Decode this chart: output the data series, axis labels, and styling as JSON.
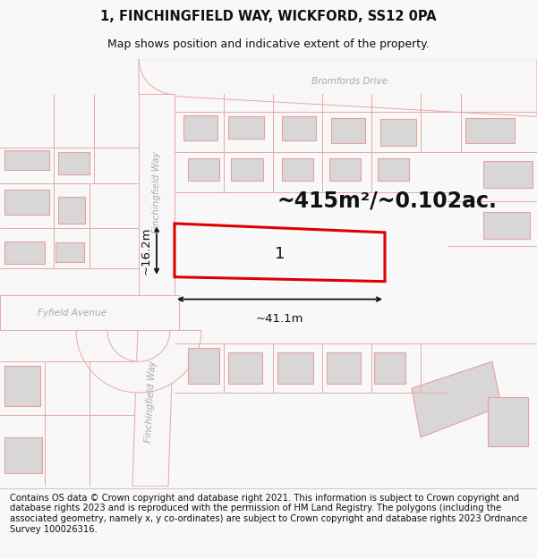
{
  "title_line1": "1, FINCHINGFIELD WAY, WICKFORD, SS12 0PA",
  "title_line2": "Map shows position and indicative extent of the property.",
  "footer_text": "Contains OS data © Crown copyright and database right 2021. This information is subject to Crown copyright and database rights 2023 and is reproduced with the permission of HM Land Registry. The polygons (including the associated geometry, namely x, y co-ordinates) are subject to Crown copyright and database rights 2023 Ordnance Survey 100026316.",
  "bg_color": "#f8f8f8",
  "map_bg": "#eeecec",
  "road_color": "#f8f6f6",
  "plot_border_color": "#dd0000",
  "building_fill": "#d8d6d6",
  "building_edge": "#e8a0a0",
  "road_line_color": "#e8a8a8",
  "street_label_color": "#aaaaaa",
  "area_text": "~415m²/~0.102ac.",
  "width_text": "~41.1m",
  "height_text": "~16.2m",
  "plot_label": "1",
  "title_fontsize": 10.5,
  "subtitle_fontsize": 9,
  "footer_fontsize": 7.2,
  "area_fontsize": 17,
  "dim_fontsize": 9.5,
  "label_fontsize": 13,
  "street_fontsize": 7.5
}
